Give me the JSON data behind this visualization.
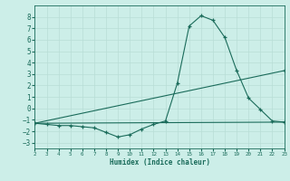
{
  "xlabel": "Humidex (Indice chaleur)",
  "background_color": "#cceee8",
  "line_color": "#1a6b5a",
  "grid_color": "#b8ddd6",
  "xlim": [
    2,
    23
  ],
  "ylim": [
    -3.5,
    9
  ],
  "xticks": [
    2,
    3,
    4,
    5,
    6,
    7,
    8,
    9,
    10,
    11,
    12,
    13,
    14,
    15,
    16,
    17,
    18,
    19,
    20,
    21,
    22,
    23
  ],
  "yticks": [
    -3,
    -2,
    -1,
    0,
    1,
    2,
    3,
    4,
    5,
    6,
    7,
    8
  ],
  "line1_x": [
    2,
    3,
    4,
    5,
    6,
    7,
    8,
    9,
    10,
    11,
    12,
    13,
    14,
    15,
    16,
    17,
    18,
    19,
    20,
    21,
    22,
    23
  ],
  "line1_y": [
    -1.3,
    -1.4,
    -1.5,
    -1.5,
    -1.6,
    -1.7,
    -2.1,
    -2.5,
    -2.3,
    -1.8,
    -1.4,
    -1.1,
    2.2,
    7.2,
    8.1,
    7.7,
    6.2,
    3.3,
    0.9,
    -0.1,
    -1.1,
    -1.2
  ],
  "line2_x": [
    2,
    23
  ],
  "line2_y": [
    -1.3,
    -1.2
  ],
  "line3_x": [
    2,
    23
  ],
  "line3_y": [
    -1.3,
    3.3
  ]
}
